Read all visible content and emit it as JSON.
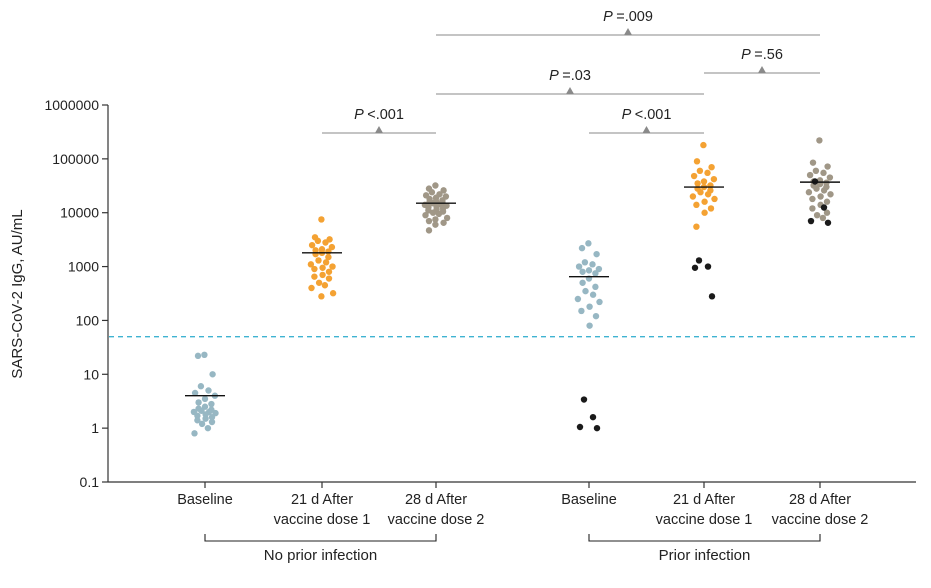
{
  "colors": {
    "baseline": "#97b7c3",
    "dose1": "#f4a233",
    "dose2": "#a09787",
    "outlier": "#1a1a1a",
    "threshold": "#3fb3d1",
    "bracket": "#8a8a8a",
    "axis": "#333333"
  },
  "chart_data": {
    "type": "scatter",
    "yscale": "log",
    "ylim": [
      0.1,
      1000000
    ],
    "ylabel": "SARS-CoV-2 IgG, AU/mL",
    "yticks": [
      0.1,
      1,
      10,
      100,
      1000,
      10000,
      100000,
      1000000
    ],
    "ytick_labels": [
      "0.1",
      "1",
      "10",
      "100",
      "1000",
      "10000",
      "100000",
      "1000000"
    ],
    "threshold": 50,
    "categories": [
      {
        "label_line1": "Baseline",
        "label_line2": ""
      },
      {
        "label_line1": "21 d After",
        "label_line2": "vaccine dose 1"
      },
      {
        "label_line1": "28 d After",
        "label_line2": "vaccine dose 2"
      },
      {
        "label_line1": "Baseline",
        "label_line2": ""
      },
      {
        "label_line1": "21 d After",
        "label_line2": "vaccine dose 1"
      },
      {
        "label_line1": "28 d After",
        "label_line2": "vaccine dose 2"
      }
    ],
    "groups": [
      {
        "label": "No prior infection",
        "categories": [
          0,
          1,
          2
        ]
      },
      {
        "label": "Prior infection",
        "categories": [
          3,
          4,
          5
        ]
      }
    ],
    "series": [
      {
        "name": "No prior infection - Baseline",
        "category": 0,
        "color_key": "baseline",
        "median": 4,
        "values": [
          23,
          22,
          10,
          6,
          5,
          4.5,
          4,
          3.5,
          3,
          2.8,
          2.5,
          2.3,
          2.2,
          2.1,
          2,
          2,
          1.9,
          1.8,
          1.7,
          1.6,
          1.5,
          1.4,
          1.3,
          1.2,
          1,
          0.8
        ],
        "outliers": []
      },
      {
        "name": "No prior infection - 21 d After vaccine dose 1",
        "category": 1,
        "color_key": "dose1",
        "median": 1800,
        "values": [
          7500,
          3500,
          3200,
          3000,
          2800,
          2500,
          2300,
          2100,
          2000,
          1900,
          1800,
          1700,
          1500,
          1300,
          1200,
          1100,
          1000,
          950,
          900,
          800,
          700,
          650,
          600,
          500,
          450,
          400,
          320,
          280
        ],
        "outliers": []
      },
      {
        "name": "No prior infection - 28 d After vaccine dose 2",
        "category": 2,
        "color_key": "dose2",
        "median": 15000,
        "values": [
          32000,
          28000,
          26000,
          24000,
          22000,
          21000,
          20000,
          19000,
          18000,
          17000,
          16500,
          16000,
          15500,
          15000,
          14500,
          14000,
          13500,
          13000,
          12500,
          12000,
          11500,
          11000,
          10500,
          10000,
          9500,
          9000,
          8000,
          7500,
          7000,
          6500,
          6000,
          4700
        ],
        "outliers": []
      },
      {
        "name": "Prior infection - Baseline",
        "category": 3,
        "color_key": "baseline",
        "median": 650,
        "values": [
          2700,
          2200,
          1700,
          1200,
          1100,
          1000,
          900,
          850,
          800,
          750,
          600,
          500,
          420,
          350,
          300,
          250,
          220,
          180,
          150,
          120,
          80
        ],
        "outliers": [
          3.4,
          1.6,
          1.05,
          1.0
        ]
      },
      {
        "name": "Prior infection - 21 d After vaccine dose 1",
        "category": 4,
        "color_key": "dose1",
        "median": 30000,
        "values": [
          180000,
          90000,
          70000,
          60000,
          55000,
          48000,
          42000,
          38000,
          35000,
          32000,
          30000,
          28000,
          26000,
          24000,
          22000,
          20000,
          18000,
          16000,
          14000,
          12000,
          10000,
          5500
        ],
        "outliers": [
          1300,
          1000,
          950,
          280
        ]
      },
      {
        "name": "Prior infection - 28 d After vaccine dose 2",
        "category": 5,
        "color_key": "dose2",
        "median": 37000,
        "values": [
          220000,
          85000,
          72000,
          60000,
          55000,
          50000,
          45000,
          40000,
          38000,
          36000,
          34000,
          32000,
          30000,
          28000,
          26000,
          24000,
          22000,
          20000,
          18000,
          16000,
          14000,
          12000,
          10000,
          9000,
          8000
        ],
        "outliers": [
          38000,
          12500,
          7000,
          6500
        ]
      }
    ],
    "comparisons": [
      {
        "from": 1,
        "to": 2,
        "p_symbol": "P",
        "p_value": "<.001",
        "level": 1
      },
      {
        "from": 3,
        "to": 4,
        "p_symbol": "P",
        "p_value": "<.001",
        "level": 1
      },
      {
        "from": 2,
        "to": 4,
        "p_symbol": "P",
        "p_value": "=.03",
        "level": 2
      },
      {
        "from": 4,
        "to": 5,
        "p_symbol": "P",
        "p_value": "=.56",
        "level": 3
      },
      {
        "from": 2,
        "to": 5,
        "p_symbol": "P",
        "p_value": "=.009",
        "level": 4
      }
    ]
  }
}
